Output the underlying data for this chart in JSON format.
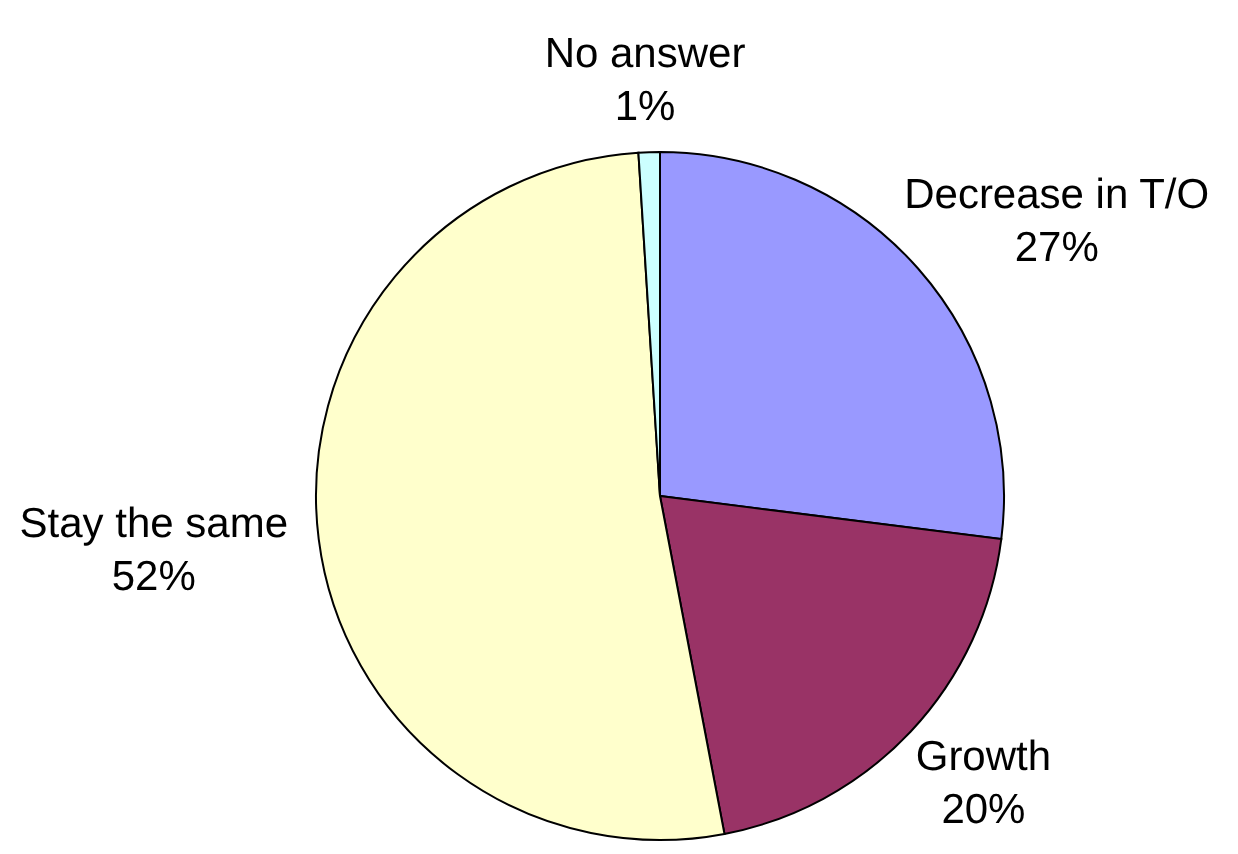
{
  "chart_data": {
    "type": "pie",
    "categories": [
      "Decrease in T/O",
      "Growth",
      "Stay the same",
      "No answer"
    ],
    "values": [
      27,
      20,
      52,
      1
    ],
    "value_labels": [
      "27%",
      "20%",
      "52%",
      "1%"
    ],
    "colors": [
      "#9999ff",
      "#993366",
      "#ffffcc",
      "#ccffff"
    ]
  }
}
